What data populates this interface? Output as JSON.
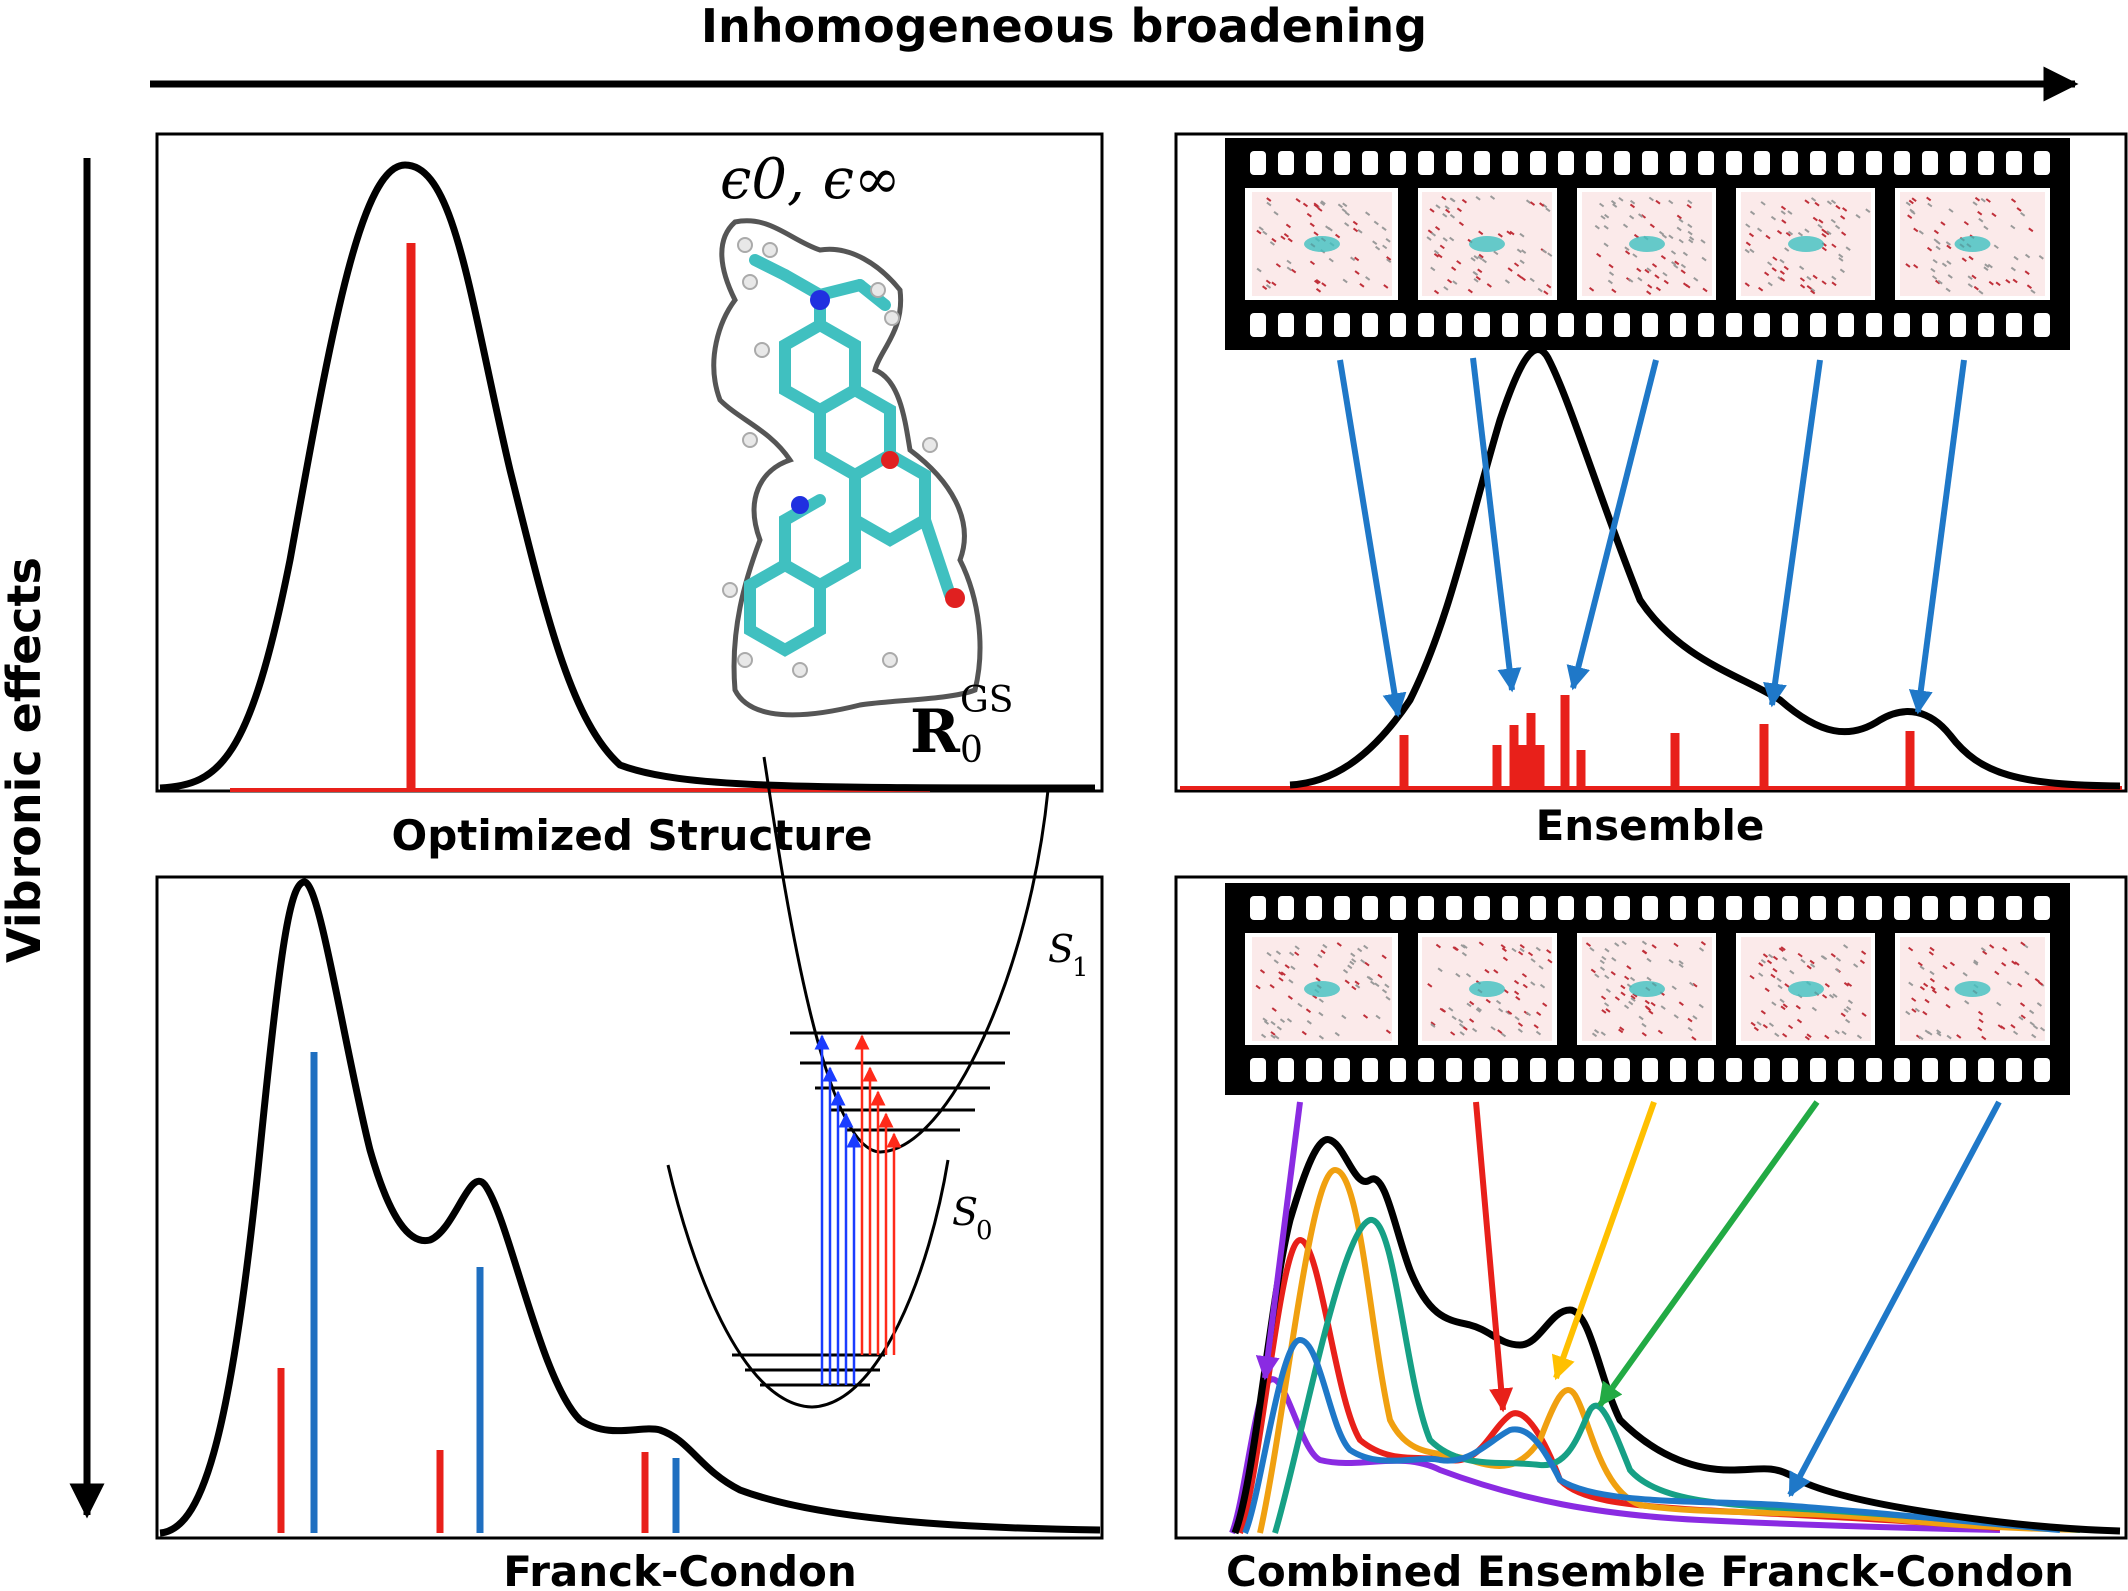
{
  "header": {
    "horizontal_axis_label": "Inhomogeneous broadening",
    "vertical_axis_label": "Vibronic effects"
  },
  "panels": {
    "top_left": {
      "caption": "Optimized Structure",
      "dielectric_label": "ϵ0, ϵ∞",
      "geometry_label_main": "R",
      "geometry_label_sup": "GS",
      "geometry_label_sub": "0"
    },
    "top_right": {
      "caption": "Ensemble"
    },
    "bottom_left": {
      "caption": "Franck-Condon",
      "upper_state_label": "S",
      "upper_state_sub": "1",
      "lower_state_label": "S",
      "lower_state_sub": "0"
    },
    "bottom_right": {
      "caption": "Combined Ensemble Franck-Condon"
    }
  },
  "colors": {
    "spectrum": "#000000",
    "stick_red": "#e8201a",
    "stick_blue": "#1f6fc0",
    "arrow_blue": "#1f78c8",
    "conf_purple": "#8a2be2",
    "conf_red": "#e8201a",
    "conf_orange": "#f0a010",
    "conf_teal": "#16a085",
    "conf_blue": "#1f78c8",
    "arrow_yellow": "#ffc000",
    "arrow_green": "#22aa44"
  },
  "icons": [
    "molecule-icon",
    "film-strip-icon",
    "potential-well-icon"
  ]
}
